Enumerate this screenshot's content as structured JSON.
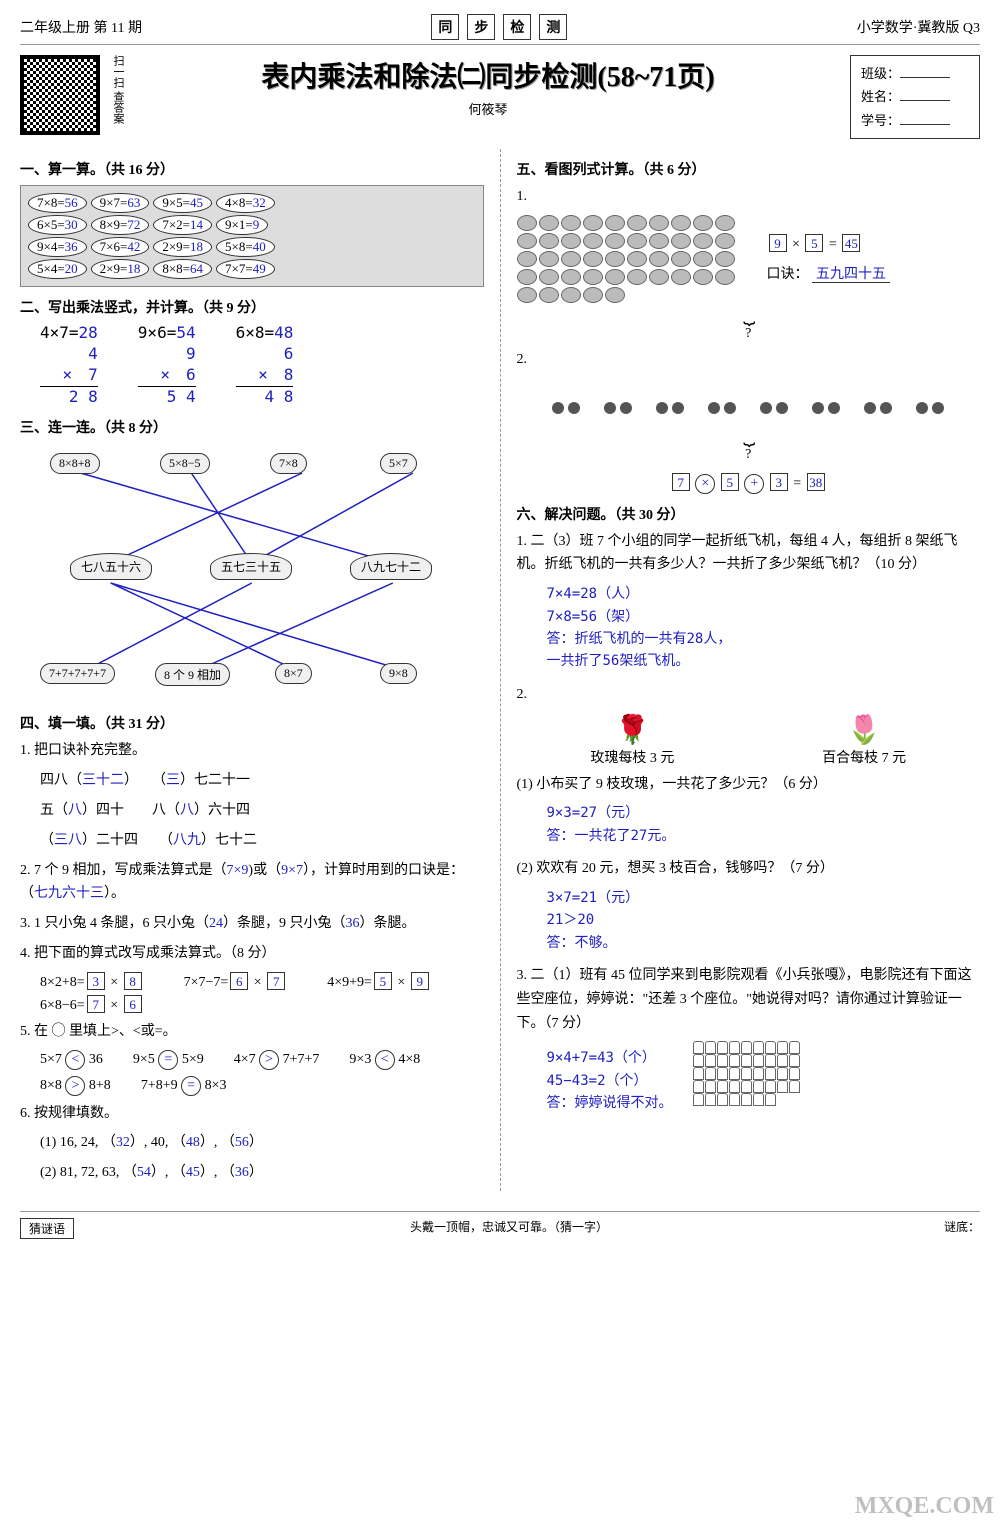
{
  "header": {
    "left": "二年级上册    第 11 期",
    "center": [
      "同",
      "步",
      "检",
      "测"
    ],
    "right": "小学数学·冀教版  Q3"
  },
  "title": {
    "qr_label": "扫一扫 查答案",
    "main": "表内乘法和除法㈡同步检测(58~71页)",
    "author": "何筱琴",
    "info_class": "班级：",
    "info_name": "姓名：",
    "info_id": "学号："
  },
  "s1": {
    "title": "一、算一算。（共 16 分）",
    "row1": [
      [
        "7×8=",
        "56"
      ],
      [
        "9×7=",
        "63"
      ],
      [
        "9×5=",
        "45"
      ],
      [
        "4×8=",
        "32"
      ]
    ],
    "row2": [
      [
        "6×5=",
        "30"
      ],
      [
        "8×9=",
        "72"
      ],
      [
        "7×2=",
        "14"
      ],
      [
        "9×1=",
        "9"
      ]
    ],
    "row3": [
      [
        "9×4=",
        "36"
      ],
      [
        "7×6=",
        "42"
      ],
      [
        "2×9=",
        "18"
      ],
      [
        "5×8=",
        "40"
      ]
    ],
    "row4": [
      [
        "5×4=",
        "20"
      ],
      [
        "2×9=",
        "18"
      ],
      [
        "8×8=",
        "64"
      ],
      [
        "7×7=",
        "49"
      ]
    ]
  },
  "s2": {
    "title": "二、写出乘法竖式，并计算。（共 9 分）",
    "items": [
      {
        "h": "4×7=",
        "hr": "28",
        "a": "4",
        "b": "7",
        "r": "2 8"
      },
      {
        "h": "9×6=",
        "hr": "54",
        "a": "9",
        "b": "6",
        "r": "5 4"
      },
      {
        "h": "6×8=",
        "hr": "48",
        "a": "6",
        "b": "8",
        "r": "4 8"
      }
    ]
  },
  "s3": {
    "title": "三、连一连。（共 8 分）",
    "top": [
      "8×8+8",
      "5×8−5",
      "7×8",
      "5×7"
    ],
    "mid": [
      "七八五十六",
      "五七三十五",
      "八九七十二"
    ],
    "bot": [
      "7+7+7+7+7",
      "8 个 9 相加",
      "8×7",
      "9×8"
    ]
  },
  "s4": {
    "title": "四、填一填。（共 31 分）",
    "q1_intro": "1. 把口诀补充完整。",
    "q1": [
      [
        "四八（",
        "三十二",
        "）",
        "（",
        "三",
        "）七二十一"
      ],
      [
        "五（",
        "八",
        "）四十",
        "八（",
        "八",
        "）六十四"
      ],
      [
        "（",
        "三八",
        "）二十四",
        "（",
        "八九",
        "）七十二"
      ]
    ],
    "q2": "2. 7 个 9 相加，写成乘法算式是（",
    "q2a": "7×9",
    "q2b": ")或（",
    "q2c": "9×7",
    "q2d": "），计算时用到的口诀是：（",
    "q2e": "七九六十三",
    "q2f": "）。",
    "q3a": "3. 1 只小兔 4 条腿，6 只小兔（",
    "q3b": "24",
    "q3c": "）条腿，9 只小兔（",
    "q3d": "36",
    "q3e": "）条腿。",
    "q4_intro": "4. 把下面的算式改写成乘法算式。（8 分）",
    "q4": [
      [
        "8×2+8=",
        "3",
        "8"
      ],
      [
        "7×7−7=",
        "6",
        "7"
      ],
      [
        "4×9+9=",
        "5",
        "9"
      ],
      [
        "6×8−6=",
        "7",
        "6"
      ]
    ],
    "q5_intro": "5. 在 ◯ 里填上>、<或=。",
    "q5": [
      [
        "5×7",
        "<",
        "36"
      ],
      [
        "9×5",
        "=",
        "5×9"
      ],
      [
        "4×7",
        ">",
        "7+7+7"
      ],
      [
        "9×3",
        "<",
        "4×8"
      ],
      [
        "8×8",
        ">",
        "8+8"
      ],
      [
        "7+8+9",
        "=",
        "8×3"
      ]
    ],
    "q6_intro": "6. 按规律填数。",
    "q6a_pre": "(1) 16, 24, （",
    "q6a_1": "32",
    "q6a_m1": "）, 40, （",
    "q6a_2": "48",
    "q6a_m2": "）, （",
    "q6a_3": "56",
    "q6a_post": "）",
    "q6b_pre": "(2) 81, 72, 63, （",
    "q6b_1": "54",
    "q6b_m1": "）, （",
    "q6b_2": "45",
    "q6b_m2": "）, （",
    "q6b_3": "36",
    "q6b_post": "）"
  },
  "s5": {
    "title": "五、看图列式计算。（共 6 分）",
    "q1_box1": "9",
    "q1_op": "×",
    "q1_box2": "5",
    "q1_eq": "=",
    "q1_box3": "45",
    "q1_kou": "口诀：",
    "q1_ans": "五九四十五",
    "q2_boxes": [
      "7",
      "×",
      "5",
      "+",
      "3",
      "=",
      "38"
    ],
    "q2_mark": "?"
  },
  "s6": {
    "title": "六、解决问题。（共 30 分）",
    "q1": "1. 二（3）班 7 个小组的同学一起折纸飞机，每组 4 人，每组折 8 架纸飞机。折纸飞机的一共有多少人？一共折了多少架纸飞机？（10 分）",
    "q1_ans": "7×4=28（人）\n7×8=56（架）\n答：折纸飞机的一共有28人，\n一共折了56架纸飞机。",
    "q2_rose": "玫瑰每枝 3 元",
    "q2_lily": "百合每枝 7 元",
    "q2_1": "(1) 小布买了 9 枝玫瑰，一共花了多少元？（6 分）",
    "q2_1_ans": "9×3=27（元）\n答：一共花了27元。",
    "q2_2": "(2) 欢欢有 20 元，想买 3 枝百合，钱够吗？（7 分）",
    "q2_2_ans": "3×7=21（元）\n21＞20\n答：不够。",
    "q3": "3. 二（1）班有 45 位同学来到电影院观看《小兵张嘎》，电影院还有下面这些空座位，婷婷说：\"还差 3 个座位。\"她说得对吗？请你通过计算验证一下。（7 分）",
    "q3_ans": "9×4+7=43（个）\n45−43=2（个）\n答：婷婷说得不对。"
  },
  "footer": {
    "tag": "猜谜语",
    "riddle": "头戴一顶帽，忠诚又可靠。（猜一字）",
    "ans_label": "谜底："
  },
  "watermark": "MXQE.COM",
  "colors": {
    "answer": "#2020c0"
  }
}
